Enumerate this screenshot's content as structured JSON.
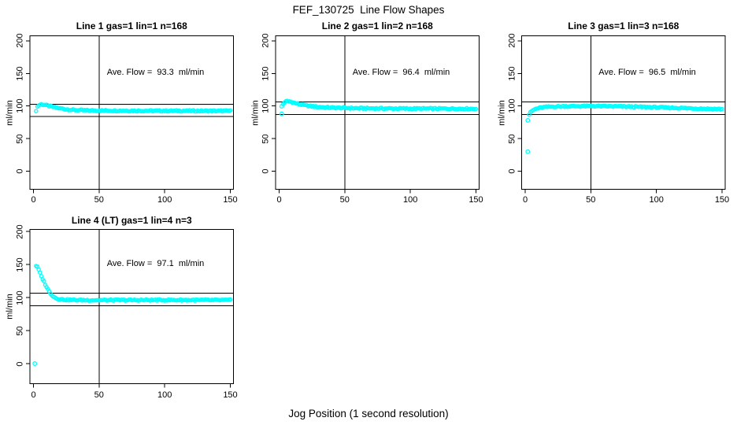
{
  "title": "FEF_130725  Line Flow Shapes",
  "xlabel": "Jog Position (1 second resolution)",
  "colors": {
    "points": "#00FFFF",
    "axis": "#000000",
    "background": "#FFFFFF"
  },
  "chart_data": [
    {
      "type": "scatter",
      "title": "Line 1 gas=1 lin=1 n=168",
      "annotation": "Ave. Flow =  93.3  ml/min",
      "ave_flow_ml_min": 93.3,
      "ylabel": "ml/min",
      "x_ticks": [
        0,
        50,
        100,
        150
      ],
      "y_ticks": [
        0,
        50,
        100,
        150,
        200
      ],
      "xlim": [
        -2.5,
        152.5
      ],
      "ylim": [
        -28,
        208
      ],
      "vline_x": 50,
      "hlines": [
        102.6,
        84.0
      ],
      "marker": "open-circle",
      "sampling": "one point per jog position, x=2..150",
      "keypoints": [
        [
          2,
          93
        ],
        [
          3,
          99
        ],
        [
          4,
          101
        ],
        [
          5,
          102
        ],
        [
          6,
          102.5
        ],
        [
          8,
          102
        ],
        [
          10,
          101
        ],
        [
          12,
          100
        ],
        [
          15,
          98.5
        ],
        [
          20,
          96.5
        ],
        [
          25,
          95
        ],
        [
          30,
          94
        ],
        [
          40,
          93.2
        ],
        [
          50,
          93
        ],
        [
          70,
          92.8
        ],
        [
          100,
          92.6
        ],
        [
          150,
          92.5
        ]
      ],
      "extra_points": []
    },
    {
      "type": "scatter",
      "title": "Line 2 gas=1 lin=2 n=168",
      "annotation": "Ave. Flow =  96.4  ml/min",
      "ave_flow_ml_min": 96.4,
      "ylabel": "ml/min",
      "x_ticks": [
        0,
        50,
        100,
        150
      ],
      "y_ticks": [
        0,
        50,
        100,
        150,
        200
      ],
      "xlim": [
        -2.5,
        152.5
      ],
      "ylim": [
        -28,
        208
      ],
      "vline_x": 50,
      "hlines": [
        106.0,
        86.8
      ],
      "marker": "open-circle",
      "sampling": "one point per jog position, x=3..150",
      "keypoints": [
        [
          3,
          103
        ],
        [
          4,
          105.5
        ],
        [
          5,
          106.5
        ],
        [
          6,
          107.5
        ],
        [
          8,
          107
        ],
        [
          10,
          106
        ],
        [
          12,
          104.5
        ],
        [
          15,
          103
        ],
        [
          20,
          101
        ],
        [
          25,
          99.5
        ],
        [
          30,
          98.5
        ],
        [
          40,
          97.5
        ],
        [
          50,
          97
        ],
        [
          60,
          96.5
        ],
        [
          80,
          96.2
        ],
        [
          100,
          96
        ],
        [
          150,
          95.8
        ]
      ],
      "extra_points": [
        [
          2,
          88
        ],
        [
          2,
          99.5
        ]
      ]
    },
    {
      "type": "scatter",
      "title": "Line 3 gas=1 lin=3 n=168",
      "annotation": "Ave. Flow =  96.5  ml/min",
      "ave_flow_ml_min": 96.5,
      "ylabel": "ml/min",
      "x_ticks": [
        0,
        50,
        100,
        150
      ],
      "y_ticks": [
        0,
        50,
        100,
        150,
        200
      ],
      "xlim": [
        -2.5,
        152.5
      ],
      "ylim": [
        -28,
        208
      ],
      "vline_x": 50,
      "hlines": [
        106.2,
        86.9
      ],
      "marker": "open-circle",
      "sampling": "one point per jog position, x=3..150",
      "keypoints": [
        [
          3,
          87
        ],
        [
          4,
          90
        ],
        [
          5,
          92
        ],
        [
          6,
          93.5
        ],
        [
          8,
          95.5
        ],
        [
          10,
          96.5
        ],
        [
          12,
          97.5
        ],
        [
          15,
          98.3
        ],
        [
          20,
          99
        ],
        [
          30,
          99.6
        ],
        [
          40,
          99.8
        ],
        [
          50,
          100
        ],
        [
          60,
          99.8
        ],
        [
          80,
          99
        ],
        [
          100,
          98
        ],
        [
          120,
          96.8
        ],
        [
          140,
          95.7
        ],
        [
          150,
          95.2
        ]
      ],
      "extra_points": [
        [
          2,
          30
        ],
        [
          2,
          78
        ]
      ]
    },
    {
      "type": "scatter",
      "title": "Line 4 (LT) gas=1 lin=4 n=3",
      "annotation": "Ave. Flow =  97.1  ml/min",
      "ave_flow_ml_min": 97.1,
      "ylabel": "ml/min",
      "x_ticks": [
        0,
        50,
        100,
        150
      ],
      "y_ticks": [
        0,
        50,
        100,
        150,
        200
      ],
      "xlim": [
        -2.5,
        152.5
      ],
      "ylim": [
        -30,
        203
      ],
      "vline_x": 50,
      "hlines": [
        106.8,
        87.4
      ],
      "marker": "open-circle",
      "sampling": "one point per jog position, x=2..150",
      "keypoints": [
        [
          2,
          148
        ],
        [
          3,
          146
        ],
        [
          4,
          142
        ],
        [
          5,
          137
        ],
        [
          6,
          132
        ],
        [
          7,
          128
        ],
        [
          8,
          124
        ],
        [
          9,
          120
        ],
        [
          10,
          116
        ],
        [
          11,
          112.5
        ],
        [
          12,
          109
        ],
        [
          13,
          106.5
        ],
        [
          14,
          104
        ],
        [
          15,
          102
        ],
        [
          16,
          100.5
        ],
        [
          17,
          99.3
        ],
        [
          18,
          98.5
        ],
        [
          19,
          97.9
        ],
        [
          20,
          97.5
        ],
        [
          22,
          97
        ],
        [
          25,
          96.6
        ],
        [
          30,
          96.2
        ],
        [
          40,
          96
        ],
        [
          60,
          96
        ],
        [
          100,
          96.2
        ],
        [
          150,
          96
        ]
      ],
      "extra_points": [
        [
          1,
          0
        ]
      ]
    }
  ]
}
